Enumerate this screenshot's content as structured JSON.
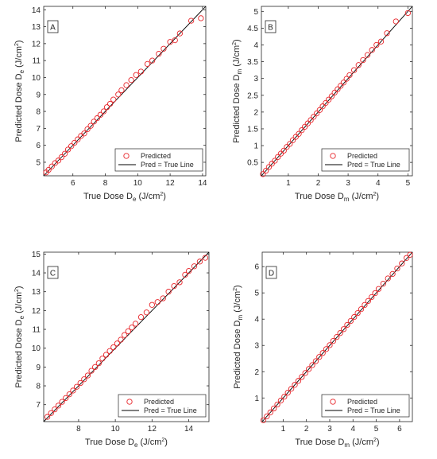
{
  "colors": {
    "marker": "#e8262b",
    "line": "#000000",
    "axis": "#262626"
  },
  "chart_data": [
    {
      "type": "scatter",
      "panel_label": "A",
      "xlabel": {
        "main": "True Dose D",
        "sub": "e",
        "unit_pre": " (J/cm",
        "sup": "2",
        "unit_post": ")"
      },
      "ylabel": {
        "main": "Predicted Dose D",
        "sub": "e",
        "unit_pre": " (J/cm",
        "sup": "2",
        "unit_post": ")"
      },
      "xlim": [
        4.2,
        14.2
      ],
      "ylim": [
        4.2,
        14.2
      ],
      "xticks": [
        "6",
        "8",
        "10",
        "12",
        "14"
      ],
      "yticks": [
        "5",
        "6",
        "7",
        "8",
        "9",
        "10",
        "11",
        "12",
        "13",
        "14"
      ],
      "legend": {
        "marker_label": "Predicted",
        "line_label": "Pred = True Line",
        "position": "bottom-right"
      },
      "reference_line": [
        [
          4.2,
          4.2
        ],
        [
          14.2,
          14.2
        ]
      ],
      "points": [
        [
          4.35,
          4.4
        ],
        [
          4.5,
          4.55
        ],
        [
          4.7,
          4.75
        ],
        [
          4.9,
          4.95
        ],
        [
          5.1,
          5.1
        ],
        [
          5.3,
          5.3
        ],
        [
          5.5,
          5.5
        ],
        [
          5.7,
          5.75
        ],
        [
          5.9,
          5.95
        ],
        [
          6.1,
          6.15
        ],
        [
          6.3,
          6.35
        ],
        [
          6.5,
          6.55
        ],
        [
          6.7,
          6.7
        ],
        [
          6.9,
          6.95
        ],
        [
          7.1,
          7.15
        ],
        [
          7.3,
          7.4
        ],
        [
          7.5,
          7.6
        ],
        [
          7.7,
          7.8
        ],
        [
          7.9,
          8.0
        ],
        [
          8.1,
          8.25
        ],
        [
          8.3,
          8.45
        ],
        [
          8.5,
          8.7
        ],
        [
          8.8,
          9.0
        ],
        [
          9.0,
          9.25
        ],
        [
          9.3,
          9.55
        ],
        [
          9.6,
          9.85
        ],
        [
          9.9,
          10.15
        ],
        [
          10.2,
          10.35
        ],
        [
          10.6,
          10.8
        ],
        [
          10.9,
          11.0
        ],
        [
          11.3,
          11.4
        ],
        [
          11.6,
          11.7
        ],
        [
          12.0,
          12.1
        ],
        [
          12.3,
          12.2
        ],
        [
          12.6,
          12.6
        ],
        [
          13.3,
          13.35
        ],
        [
          13.9,
          13.5
        ]
      ]
    },
    {
      "type": "scatter",
      "panel_label": "B",
      "xlabel": {
        "main": "True Dose D",
        "sub": "m",
        "unit_pre": " (J/cm",
        "sup": "2",
        "unit_post": ")"
      },
      "ylabel": {
        "main": "Predicted Dose D",
        "sub": "m",
        "unit_pre": " (J/cm",
        "sup": "2",
        "unit_post": ")"
      },
      "xlim": [
        0.1,
        5.15
      ],
      "ylim": [
        0.1,
        5.15
      ],
      "xticks": [
        "1",
        "2",
        "3",
        "4",
        "5"
      ],
      "yticks": [
        "0.5",
        "1",
        "1.5",
        "2",
        "2.5",
        "3",
        "3.5",
        "4",
        "4.5",
        "5"
      ],
      "legend": {
        "marker_label": "Predicted",
        "line_label": "Pred = True Line",
        "position": "bottom-right"
      },
      "reference_line": [
        [
          0.1,
          0.1
        ],
        [
          5.15,
          5.15
        ]
      ],
      "points": [
        [
          0.15,
          0.15
        ],
        [
          0.25,
          0.25
        ],
        [
          0.35,
          0.36
        ],
        [
          0.45,
          0.46
        ],
        [
          0.55,
          0.55
        ],
        [
          0.65,
          0.66
        ],
        [
          0.75,
          0.76
        ],
        [
          0.85,
          0.85
        ],
        [
          0.95,
          0.96
        ],
        [
          1.05,
          1.05
        ],
        [
          1.15,
          1.16
        ],
        [
          1.25,
          1.26
        ],
        [
          1.35,
          1.35
        ],
        [
          1.45,
          1.46
        ],
        [
          1.55,
          1.56
        ],
        [
          1.65,
          1.66
        ],
        [
          1.75,
          1.76
        ],
        [
          1.85,
          1.86
        ],
        [
          1.95,
          1.96
        ],
        [
          2.05,
          2.06
        ],
        [
          2.15,
          2.17
        ],
        [
          2.25,
          2.27
        ],
        [
          2.35,
          2.37
        ],
        [
          2.45,
          2.47
        ],
        [
          2.55,
          2.58
        ],
        [
          2.65,
          2.68
        ],
        [
          2.75,
          2.78
        ],
        [
          2.85,
          2.88
        ],
        [
          2.95,
          2.99
        ],
        [
          3.05,
          3.1
        ],
        [
          3.2,
          3.25
        ],
        [
          3.35,
          3.4
        ],
        [
          3.5,
          3.55
        ],
        [
          3.65,
          3.7
        ],
        [
          3.8,
          3.85
        ],
        [
          3.95,
          4.0
        ],
        [
          4.1,
          4.1
        ],
        [
          4.3,
          4.35
        ],
        [
          4.6,
          4.7
        ],
        [
          5.0,
          4.95
        ]
      ]
    },
    {
      "type": "scatter",
      "panel_label": "C",
      "xlabel": {
        "main": "True Dose D",
        "sub": "e",
        "unit_pre": " (J/cm",
        "sup": "2",
        "unit_post": ")"
      },
      "ylabel": {
        "main": "Predicted Dose D",
        "sub": "e",
        "unit_pre": " (J/cm",
        "sup": "2",
        "unit_post": ")"
      },
      "xlim": [
        6.1,
        15.1
      ],
      "ylim": [
        6.1,
        15.1
      ],
      "xticks": [
        "8",
        "10",
        "12",
        "14"
      ],
      "yticks": [
        "7",
        "8",
        "9",
        "10",
        "11",
        "12",
        "13",
        "14",
        "15"
      ],
      "legend": {
        "marker_label": "Predicted",
        "line_label": "Pred = True Line",
        "position": "bottom-right"
      },
      "reference_line": [
        [
          6.1,
          6.1
        ],
        [
          15.1,
          15.1
        ]
      ],
      "points": [
        [
          6.3,
          6.35
        ],
        [
          6.5,
          6.55
        ],
        [
          6.7,
          6.75
        ],
        [
          6.9,
          6.95
        ],
        [
          7.1,
          7.15
        ],
        [
          7.3,
          7.35
        ],
        [
          7.5,
          7.55
        ],
        [
          7.7,
          7.75
        ],
        [
          7.9,
          7.95
        ],
        [
          8.1,
          8.15
        ],
        [
          8.3,
          8.35
        ],
        [
          8.5,
          8.55
        ],
        [
          8.7,
          8.8
        ],
        [
          8.9,
          9.0
        ],
        [
          9.1,
          9.2
        ],
        [
          9.3,
          9.45
        ],
        [
          9.5,
          9.65
        ],
        [
          9.7,
          9.85
        ],
        [
          9.9,
          10.05
        ],
        [
          10.1,
          10.25
        ],
        [
          10.3,
          10.45
        ],
        [
          10.5,
          10.7
        ],
        [
          10.7,
          10.9
        ],
        [
          10.9,
          11.1
        ],
        [
          11.1,
          11.3
        ],
        [
          11.4,
          11.65
        ],
        [
          11.7,
          11.9
        ],
        [
          12.0,
          12.3
        ],
        [
          12.3,
          12.45
        ],
        [
          12.6,
          12.65
        ],
        [
          12.9,
          13.0
        ],
        [
          13.2,
          13.3
        ],
        [
          13.5,
          13.5
        ],
        [
          13.8,
          13.9
        ],
        [
          14.0,
          14.1
        ],
        [
          14.3,
          14.35
        ],
        [
          14.6,
          14.6
        ],
        [
          14.9,
          14.8
        ]
      ]
    },
    {
      "type": "scatter",
      "panel_label": "D",
      "xlabel": {
        "main": "True Dose D",
        "sub": "m",
        "unit_pre": " (J/cm",
        "sup": "2",
        "unit_post": ")"
      },
      "ylabel": {
        "main": "Predicted Dose D",
        "sub": "m",
        "unit_pre": " (J/cm",
        "sup": "2",
        "unit_post": ")"
      },
      "xlim": [
        0.1,
        6.55
      ],
      "ylim": [
        0.1,
        6.55
      ],
      "xticks": [
        "1",
        "2",
        "3",
        "4",
        "5",
        "6"
      ],
      "yticks": [
        "1",
        "2",
        "3",
        "4",
        "5",
        "6"
      ],
      "legend": {
        "marker_label": "Predicted",
        "line_label": "Pred = True Line",
        "position": "bottom-right"
      },
      "reference_line": [
        [
          0.1,
          0.1
        ],
        [
          6.55,
          6.55
        ]
      ],
      "points": [
        [
          0.15,
          0.15
        ],
        [
          0.3,
          0.3
        ],
        [
          0.45,
          0.45
        ],
        [
          0.6,
          0.6
        ],
        [
          0.75,
          0.75
        ],
        [
          0.9,
          0.9
        ],
        [
          1.05,
          1.05
        ],
        [
          1.2,
          1.2
        ],
        [
          1.35,
          1.35
        ],
        [
          1.5,
          1.5
        ],
        [
          1.65,
          1.65
        ],
        [
          1.8,
          1.8
        ],
        [
          1.95,
          1.95
        ],
        [
          2.1,
          2.1
        ],
        [
          2.25,
          2.25
        ],
        [
          2.4,
          2.4
        ],
        [
          2.55,
          2.56
        ],
        [
          2.7,
          2.71
        ],
        [
          2.85,
          2.86
        ],
        [
          3.0,
          3.01
        ],
        [
          3.15,
          3.17
        ],
        [
          3.3,
          3.32
        ],
        [
          3.45,
          3.47
        ],
        [
          3.6,
          3.62
        ],
        [
          3.75,
          3.78
        ],
        [
          3.9,
          3.93
        ],
        [
          4.05,
          4.08
        ],
        [
          4.2,
          4.23
        ],
        [
          4.35,
          4.38
        ],
        [
          4.5,
          4.54
        ],
        [
          4.65,
          4.69
        ],
        [
          4.8,
          4.84
        ],
        [
          4.95,
          4.99
        ],
        [
          5.1,
          5.15
        ],
        [
          5.3,
          5.35
        ],
        [
          5.5,
          5.55
        ],
        [
          5.7,
          5.72
        ],
        [
          5.9,
          5.93
        ],
        [
          6.1,
          6.12
        ],
        [
          6.3,
          6.33
        ],
        [
          6.45,
          6.45
        ]
      ]
    }
  ]
}
